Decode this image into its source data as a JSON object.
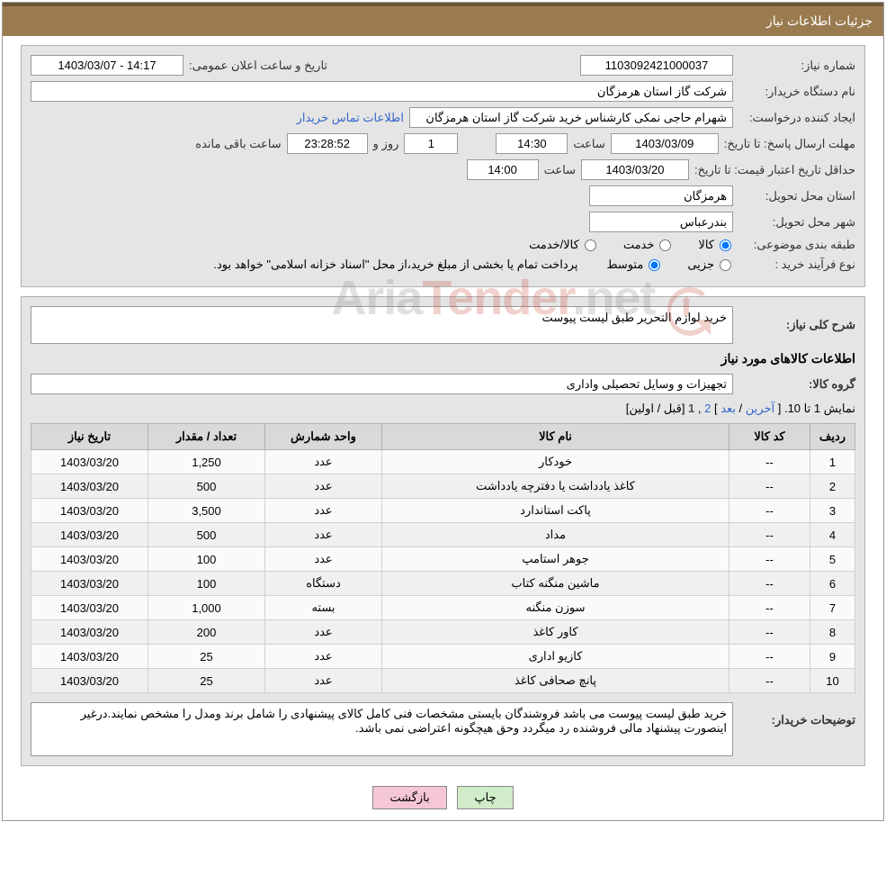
{
  "header": {
    "title": "جزئیات اطلاعات نیاز"
  },
  "info": {
    "need_number_label": "شماره نیاز:",
    "need_number": "1103092421000037",
    "announce_label": "تاریخ و ساعت اعلان عمومی:",
    "announce_value": "1403/03/07 - 14:17",
    "buyer_org_label": "نام دستگاه خریدار:",
    "buyer_org": "شرکت گاز استان هرمزگان",
    "requester_label": "ایجاد کننده درخواست:",
    "requester": "شهرام حاجی نمکی کارشناس خرید شرکت گاز استان هرمزگان",
    "buyer_contact_link": "اطلاعات تماس خریدار",
    "reply_deadline_label": "مهلت ارسال پاسخ: تا تاریخ:",
    "reply_date": "1403/03/09",
    "time_label": "ساعت",
    "reply_time": "14:30",
    "days_and": "روز و",
    "days_value": "1",
    "countdown": "23:28:52",
    "remaining_label": "ساعت باقی مانده",
    "min_valid_label": "حداقل تاریخ اعتبار قیمت: تا تاریخ:",
    "min_valid_date": "1403/03/20",
    "min_valid_time": "14:00",
    "province_label": "استان محل تحویل:",
    "province": "هرمزگان",
    "city_label": "شهر محل تحویل:",
    "city": "بندرعباس",
    "category_label": "طبقه بندی موضوعی:",
    "cat_goods": "کالا",
    "cat_service": "خدمت",
    "cat_goods_service": "کالا/خدمت",
    "process_label": "نوع فرآیند خرید :",
    "process_minor": "جزیی",
    "process_medium": "متوسط",
    "payment_note": "پرداخت تمام یا بخشی از مبلغ خرید،از محل \"اسناد خزانه اسلامی\" خواهد بود."
  },
  "need": {
    "summary_label": "شرح کلی نیاز:",
    "summary": "خرید لوازم التحریر طبق لیست پیوست",
    "items_title": "اطلاعات کالاهای مورد نیاز",
    "group_label": "گروه کالا:",
    "group": "تجهیزات و وسایل تحصیلی واداری"
  },
  "pagination": {
    "text_prefix": "نمایش 1 تا 10. [ ",
    "last": "آخرین",
    "sep1": " / ",
    "next": "بعد",
    "sep2": " ] ",
    "page2": "2",
    "comma": " ,",
    "page1": "1",
    "sep3": " [",
    "prev": "قبل",
    "sep4": " / ",
    "first": "اولین",
    "sep5": "]"
  },
  "table": {
    "columns": [
      "ردیف",
      "کد کالا",
      "نام کالا",
      "واحد شمارش",
      "تعداد / مقدار",
      "تاریخ نیاز"
    ],
    "rows": [
      [
        "1",
        "--",
        "خودکار",
        "عدد",
        "1,250",
        "1403/03/20"
      ],
      [
        "2",
        "--",
        "کاغذ یادداشت یا دفترچه یادداشت",
        "عدد",
        "500",
        "1403/03/20"
      ],
      [
        "3",
        "--",
        "پاکت استاندارد",
        "عدد",
        "3,500",
        "1403/03/20"
      ],
      [
        "4",
        "--",
        "مداد",
        "عدد",
        "500",
        "1403/03/20"
      ],
      [
        "5",
        "--",
        "جوهر استامپ",
        "عدد",
        "100",
        "1403/03/20"
      ],
      [
        "6",
        "--",
        "ماشین منگنه کتاب",
        "دستگاه",
        "100",
        "1403/03/20"
      ],
      [
        "7",
        "--",
        "سوزن منگنه",
        "بسته",
        "1,000",
        "1403/03/20"
      ],
      [
        "8",
        "--",
        "کاور کاغذ",
        "عدد",
        "200",
        "1403/03/20"
      ],
      [
        "9",
        "--",
        "کازیو اداری",
        "عدد",
        "25",
        "1403/03/20"
      ],
      [
        "10",
        "--",
        "پانچ صحافی کاغذ",
        "عدد",
        "25",
        "1403/03/20"
      ]
    ]
  },
  "notes": {
    "label": "توضیحات خریدار:",
    "text": "خرید طبق لیست پیوست می باشد فروشندگان بایستی مشخصات فنی کامل کالای پیشنهادی را شامل برند ومدل را مشخص نمایند.درغیر اینصورت پیشنهاد مالی فروشنده رد میگردد وحق هیچگونه اعتراضی نمی باشد."
  },
  "buttons": {
    "print": "چاپ",
    "back": "بازگشت"
  },
  "watermark": {
    "t1": "Aria",
    "t2": "Tender",
    "t3": ".net"
  },
  "colors": {
    "header_bg": "#9a7b4f",
    "header_border": "#6b5636",
    "panel_bg": "#e5e5e5",
    "link": "#3366cc",
    "btn_print": "#d0ecc8",
    "btn_back": "#f5c6d6"
  }
}
